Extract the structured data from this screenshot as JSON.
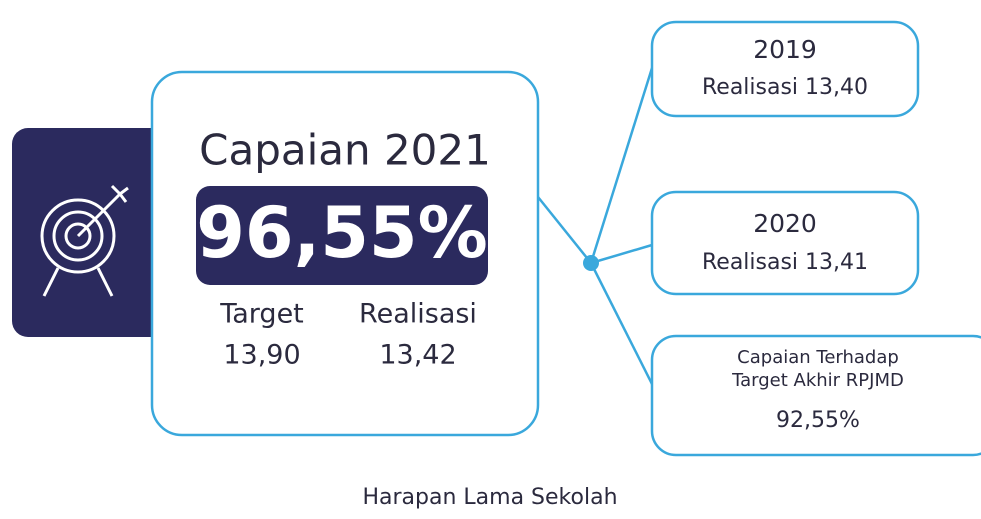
{
  "main": {
    "title": "Capaian 2021",
    "percent": "96,55%",
    "target_label": "Target",
    "target_value": "13,90",
    "realisasi_label": "Realisasi",
    "realisasi_value": "13,42"
  },
  "boxes": [
    {
      "title": "2019",
      "text": "Realisasi 13,40"
    },
    {
      "title": "2020",
      "text": "Realisasi 13,41"
    },
    {
      "lines": [
        "Capaian Terhadap",
        "Target Akhir RPJMD"
      ],
      "text": "92,55%"
    }
  ],
  "footer": "Harapan Lama Sekolah"
}
